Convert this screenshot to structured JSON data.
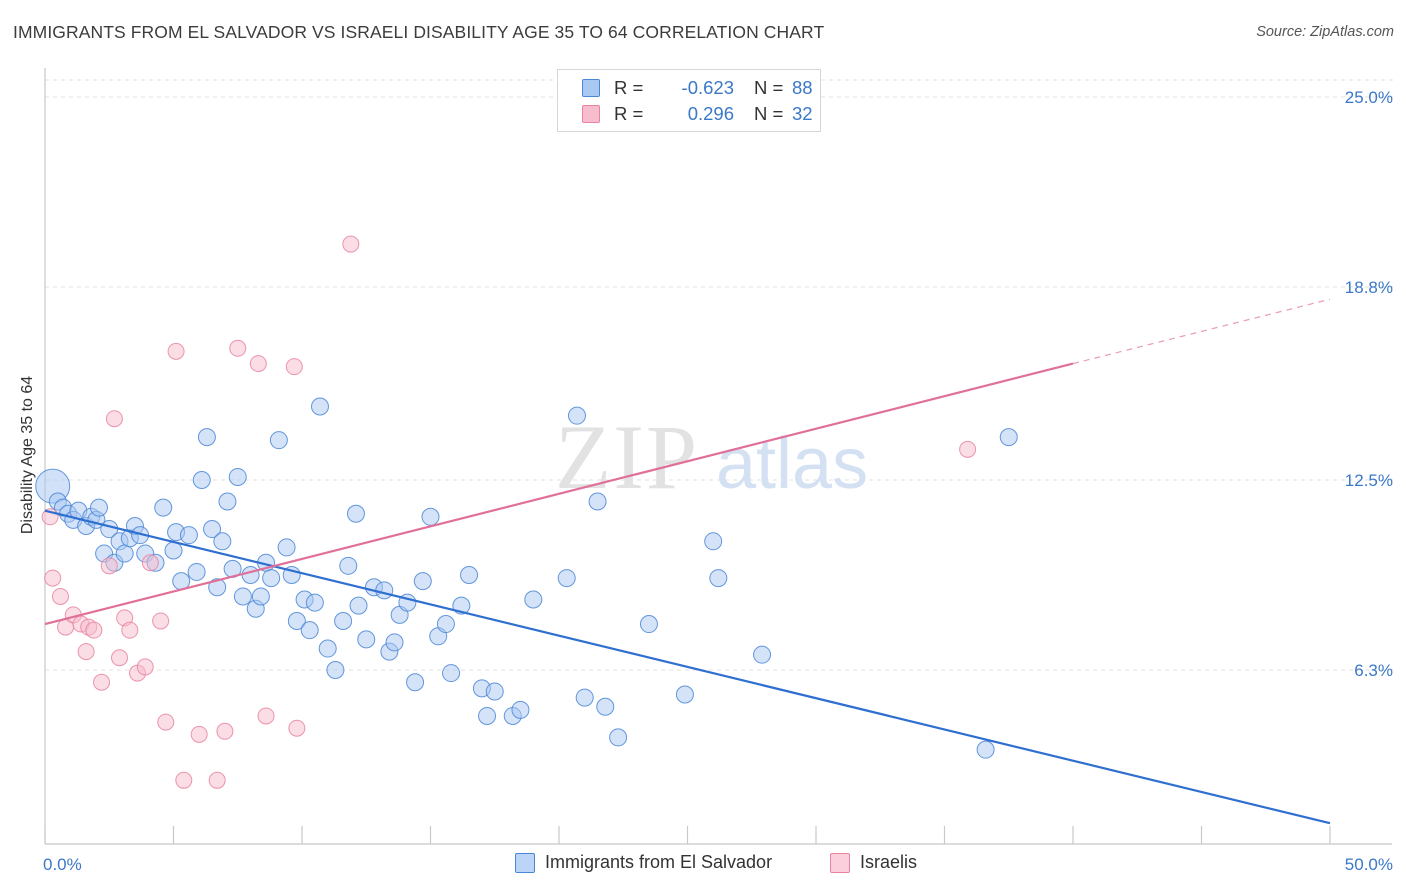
{
  "title": "IMMIGRANTS FROM EL SALVADOR VS ISRAELI DISABILITY AGE 35 TO 64 CORRELATION CHART",
  "source": "Source: ZipAtlas.com",
  "watermark": {
    "zip": "ZIP",
    "atlas": "atlas"
  },
  "legend": {
    "rows": [
      {
        "r_label": "R =",
        "r_value": "-0.623",
        "n_label": "N =",
        "n_value": "88",
        "color": "#a9c8f2"
      },
      {
        "r_label": "R =",
        "r_value": "0.296",
        "n_label": "N =",
        "n_value": "32",
        "color": "#f7bccd"
      }
    ]
  },
  "bottom_legend": [
    {
      "label": "Immigrants from El Salvador",
      "color": "#a9c8f2"
    },
    {
      "label": "Israelis",
      "color": "#f7bccd"
    }
  ],
  "chart_data": {
    "type": "scatter",
    "title": "IMMIGRANTS FROM EL SALVADOR VS ISRAELI DISABILITY AGE 35 TO 64 CORRELATION CHART",
    "ylabel": "Disability Age 35 to 64",
    "xlabel": "",
    "xlim": [
      0,
      50
    ],
    "ylim": [
      1.0,
      26.0
    ],
    "x_tick_labels": [
      "0.0%",
      "50.0%"
    ],
    "y_ticks": [
      6.3,
      12.5,
      18.8,
      25.0
    ],
    "y_tick_labels": [
      "6.3%",
      "12.5%",
      "18.8%",
      "25.0%"
    ],
    "grid": true,
    "series": [
      {
        "name": "Immigrants from El Salvador",
        "color": "#a9c8f2",
        "edge": "#4a86d6",
        "trend_color": "#2e6fd0",
        "trend": {
          "x": [
            0,
            50
          ],
          "y": [
            11.5,
            1.3
          ]
        },
        "points": [
          [
            0.3,
            12.3
          ],
          [
            0.5,
            11.8
          ],
          [
            0.7,
            11.6
          ],
          [
            0.9,
            11.4
          ],
          [
            1.1,
            11.2
          ],
          [
            1.3,
            11.5
          ],
          [
            1.6,
            11.0
          ],
          [
            1.8,
            11.3
          ],
          [
            2.0,
            11.2
          ],
          [
            2.1,
            11.6
          ],
          [
            2.3,
            10.1
          ],
          [
            2.5,
            10.9
          ],
          [
            2.7,
            9.8
          ],
          [
            2.9,
            10.5
          ],
          [
            3.1,
            10.1
          ],
          [
            3.3,
            10.6
          ],
          [
            3.5,
            11.0
          ],
          [
            3.7,
            10.7
          ],
          [
            3.9,
            10.1
          ],
          [
            4.3,
            9.8
          ],
          [
            4.6,
            11.6
          ],
          [
            5.0,
            10.2
          ],
          [
            5.1,
            10.8
          ],
          [
            5.3,
            9.2
          ],
          [
            5.6,
            10.7
          ],
          [
            5.9,
            9.5
          ],
          [
            6.1,
            12.5
          ],
          [
            6.3,
            13.9
          ],
          [
            6.5,
            10.9
          ],
          [
            6.7,
            9.0
          ],
          [
            6.9,
            10.5
          ],
          [
            7.1,
            11.8
          ],
          [
            7.3,
            9.6
          ],
          [
            7.5,
            12.6
          ],
          [
            7.7,
            8.7
          ],
          [
            8.0,
            9.4
          ],
          [
            8.2,
            8.3
          ],
          [
            8.4,
            8.7
          ],
          [
            8.6,
            9.8
          ],
          [
            8.8,
            9.3
          ],
          [
            9.1,
            13.8
          ],
          [
            9.4,
            10.3
          ],
          [
            9.6,
            9.4
          ],
          [
            9.8,
            7.9
          ],
          [
            10.1,
            8.6
          ],
          [
            10.3,
            7.6
          ],
          [
            10.5,
            8.5
          ],
          [
            10.7,
            14.9
          ],
          [
            11.0,
            7.0
          ],
          [
            11.3,
            6.3
          ],
          [
            11.6,
            7.9
          ],
          [
            11.8,
            9.7
          ],
          [
            12.1,
            11.4
          ],
          [
            12.2,
            8.4
          ],
          [
            12.5,
            7.3
          ],
          [
            12.8,
            9.0
          ],
          [
            13.2,
            8.9
          ],
          [
            13.4,
            6.9
          ],
          [
            13.6,
            7.2
          ],
          [
            13.8,
            8.1
          ],
          [
            14.1,
            8.5
          ],
          [
            14.4,
            5.9
          ],
          [
            14.7,
            9.2
          ],
          [
            15.0,
            11.3
          ],
          [
            15.3,
            7.4
          ],
          [
            15.6,
            7.8
          ],
          [
            15.8,
            6.2
          ],
          [
            16.2,
            8.4
          ],
          [
            16.5,
            9.4
          ],
          [
            17.0,
            5.7
          ],
          [
            17.2,
            4.8
          ],
          [
            17.5,
            5.6
          ],
          [
            18.2,
            4.8
          ],
          [
            18.5,
            5.0
          ],
          [
            19.0,
            8.6
          ],
          [
            20.3,
            9.3
          ],
          [
            20.7,
            14.6
          ],
          [
            21.0,
            5.4
          ],
          [
            21.5,
            11.8
          ],
          [
            21.8,
            5.1
          ],
          [
            22.3,
            4.1
          ],
          [
            23.5,
            7.8
          ],
          [
            24.9,
            5.5
          ],
          [
            26.0,
            10.5
          ],
          [
            26.2,
            9.3
          ],
          [
            27.9,
            6.8
          ],
          [
            36.6,
            3.7
          ],
          [
            37.5,
            13.9
          ]
        ]
      },
      {
        "name": "Israelis",
        "color": "#f7bccd",
        "edge": "#e8849f",
        "trend_color": "#e0709a",
        "trend": {
          "x": [
            0,
            40
          ],
          "y": [
            7.8,
            16.3
          ]
        },
        "trend_ext": {
          "x": [
            40,
            50
          ],
          "y": [
            16.3,
            18.4
          ]
        },
        "points": [
          [
            0.2,
            11.3
          ],
          [
            0.3,
            9.3
          ],
          [
            0.6,
            8.7
          ],
          [
            0.8,
            7.7
          ],
          [
            1.1,
            8.1
          ],
          [
            1.4,
            7.8
          ],
          [
            1.6,
            6.9
          ],
          [
            1.7,
            7.7
          ],
          [
            1.9,
            7.6
          ],
          [
            2.2,
            5.9
          ],
          [
            2.5,
            9.7
          ],
          [
            2.7,
            14.5
          ],
          [
            2.9,
            6.7
          ],
          [
            3.1,
            8.0
          ],
          [
            3.3,
            7.6
          ],
          [
            3.6,
            6.2
          ],
          [
            3.9,
            6.4
          ],
          [
            4.1,
            9.8
          ],
          [
            4.5,
            7.9
          ],
          [
            4.7,
            4.6
          ],
          [
            5.1,
            16.7
          ],
          [
            5.4,
            2.7
          ],
          [
            6.0,
            4.2
          ],
          [
            6.7,
            2.7
          ],
          [
            7.0,
            4.3
          ],
          [
            7.5,
            16.8
          ],
          [
            8.3,
            16.3
          ],
          [
            8.6,
            4.8
          ],
          [
            9.7,
            16.2
          ],
          [
            9.8,
            4.4
          ],
          [
            11.9,
            20.2
          ],
          [
            35.9,
            13.5
          ]
        ]
      }
    ]
  }
}
